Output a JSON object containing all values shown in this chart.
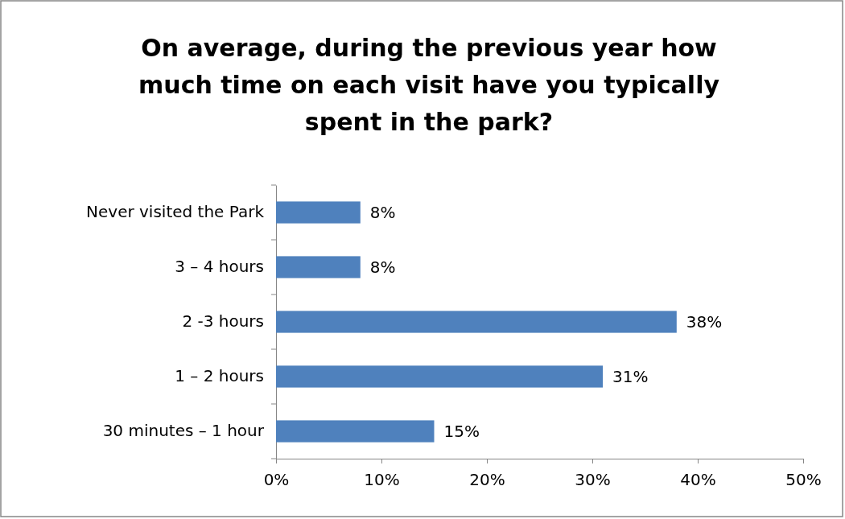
{
  "chart_data": {
    "type": "bar",
    "title": "On average, during the previous year how much time on each visit have you typically spent in the park?",
    "orientation": "horizontal",
    "categories": [
      "Never visited the Park",
      "3 – 4 hours",
      "2 -3 hours",
      "1 – 2 hours",
      "30 minutes – 1 hour"
    ],
    "values": [
      8,
      8,
      38,
      31,
      15
    ],
    "value_labels": [
      "8%",
      "8%",
      "38%",
      "31%",
      "15%"
    ],
    "color": "#4f81bd",
    "xlim": [
      0,
      50
    ],
    "xticks": [
      {
        "value": 0,
        "label": "0%"
      },
      {
        "value": 10,
        "label": "10%"
      },
      {
        "value": 20,
        "label": "20%"
      },
      {
        "value": 30,
        "label": "30%"
      },
      {
        "value": 40,
        "label": "40%"
      },
      {
        "value": 50,
        "label": "50%"
      }
    ],
    "grid": false
  }
}
